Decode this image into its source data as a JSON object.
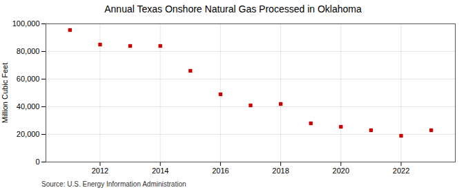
{
  "chart_data": {
    "type": "scatter",
    "title": "Annual Texas Onshore Natural Gas Processed in Oklahoma",
    "ylabel": "Million Cubic Feet",
    "source": "Source: U.S. Energy Information Administration",
    "x": [
      2011,
      2012,
      2013,
      2014,
      2015,
      2016,
      2017,
      2018,
      2019,
      2020,
      2021,
      2022,
      2023
    ],
    "values": [
      95500,
      85000,
      84000,
      84000,
      66000,
      49000,
      41000,
      42000,
      28000,
      25500,
      23000,
      19000,
      23000
    ],
    "color": "#cc0000",
    "marker": "square",
    "xlim": [
      2010.2,
      2023.8
    ],
    "xticks": [
      2012,
      2014,
      2016,
      2018,
      2020,
      2022
    ],
    "ylim": [
      0,
      100000
    ],
    "yticks": [
      0,
      {
        "value": 20000,
        "label": "20,000"
      },
      {
        "value": 40000,
        "label": "40,000"
      },
      {
        "value": 60000,
        "label": "60,000"
      },
      {
        "value": 80000,
        "label": "80,000"
      },
      {
        "value": 100000,
        "label": "100,000"
      }
    ],
    "grid": true
  }
}
